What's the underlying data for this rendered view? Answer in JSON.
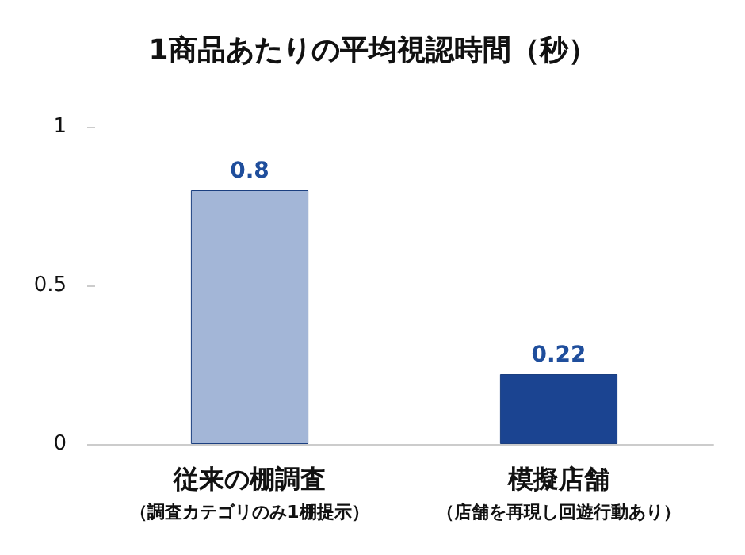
{
  "chart_data": {
    "type": "bar",
    "title": "1商品あたりの平均視認時間（秒）",
    "categories": [
      "従来の棚調査（調査カテゴリのみ1棚提示）",
      "模擬店舗（店舗を再現し回遊行動あり）"
    ],
    "values": [
      0.8,
      0.22
    ],
    "colors": [
      "#a3b6d7",
      "#1b4491"
    ],
    "ylim": [
      0,
      1
    ],
    "yticks": [
      0,
      0.5,
      1
    ],
    "data_labels": true,
    "grid": false
  }
}
